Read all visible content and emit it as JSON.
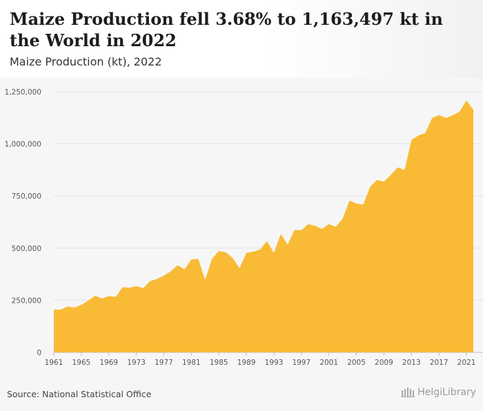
{
  "header": {
    "title": "Maize Production fell 3.68% to 1,163,497 kt in the World in 2022",
    "subtitle": "Maize Production (kt), 2022"
  },
  "footer": {
    "source": "Source: National Statistical Office",
    "logo_text": "HelgiLibrary"
  },
  "colors": {
    "area_fill": "#f9bb36",
    "gridline": "#e2e2e2",
    "tick_text": "#555555"
  },
  "chart_data": {
    "type": "area",
    "title": "Maize Production fell 3.68% to 1,163,497 kt in the World in 2022",
    "subtitle": "Maize Production (kt), 2022",
    "xlabel": "",
    "ylabel": "",
    "ylim": [
      0,
      1250000
    ],
    "y_ticks": [
      0,
      250000,
      500000,
      750000,
      1000000,
      1250000
    ],
    "y_tick_labels": [
      "0",
      "250,000",
      "500,000",
      "750,000",
      "1,000,000",
      "1,250,000"
    ],
    "x_tick_labels": [
      "1961",
      "1965",
      "1969",
      "1973",
      "1977",
      "1981",
      "1985",
      "1989",
      "1993",
      "1997",
      "2001",
      "2005",
      "2009",
      "2013",
      "2017",
      "2021"
    ],
    "grid": true,
    "legend": "none",
    "series": [
      {
        "x": [
          1961,
          1962,
          1963,
          1964,
          1965,
          1966,
          1967,
          1968,
          1969,
          1970,
          1971,
          1972,
          1973,
          1974,
          1975,
          1976,
          1977,
          1978,
          1979,
          1980,
          1981,
          1982,
          1983,
          1984,
          1985,
          1986,
          1987,
          1988,
          1989,
          1990,
          1991,
          1992,
          1993,
          1994,
          1995,
          1996,
          1997,
          1998,
          1999,
          2000,
          2001,
          2002,
          2003,
          2004,
          2005,
          2006,
          2007,
          2008,
          2009,
          2010,
          2011,
          2012,
          2013,
          2014,
          2015,
          2016,
          2017,
          2018,
          2019,
          2020,
          2021,
          2022
        ],
        "values": [
          205000,
          205000,
          220000,
          215000,
          228000,
          248000,
          272000,
          258000,
          270000,
          266000,
          313000,
          310000,
          318000,
          308000,
          342000,
          352000,
          368000,
          389000,
          418000,
          398000,
          446000,
          449000,
          348000,
          449000,
          486000,
          480000,
          453000,
          404000,
          477000,
          483000,
          494000,
          534000,
          477000,
          568000,
          517000,
          587000,
          586000,
          615000,
          607000,
          592000,
          615000,
          602000,
          642000,
          728000,
          714000,
          709000,
          795000,
          827000,
          819000,
          851000,
          887000,
          875000,
          1018000,
          1040000,
          1052000,
          1124000,
          1138000,
          1124000,
          1137000,
          1155000,
          1208000,
          1163497
        ]
      }
    ]
  }
}
